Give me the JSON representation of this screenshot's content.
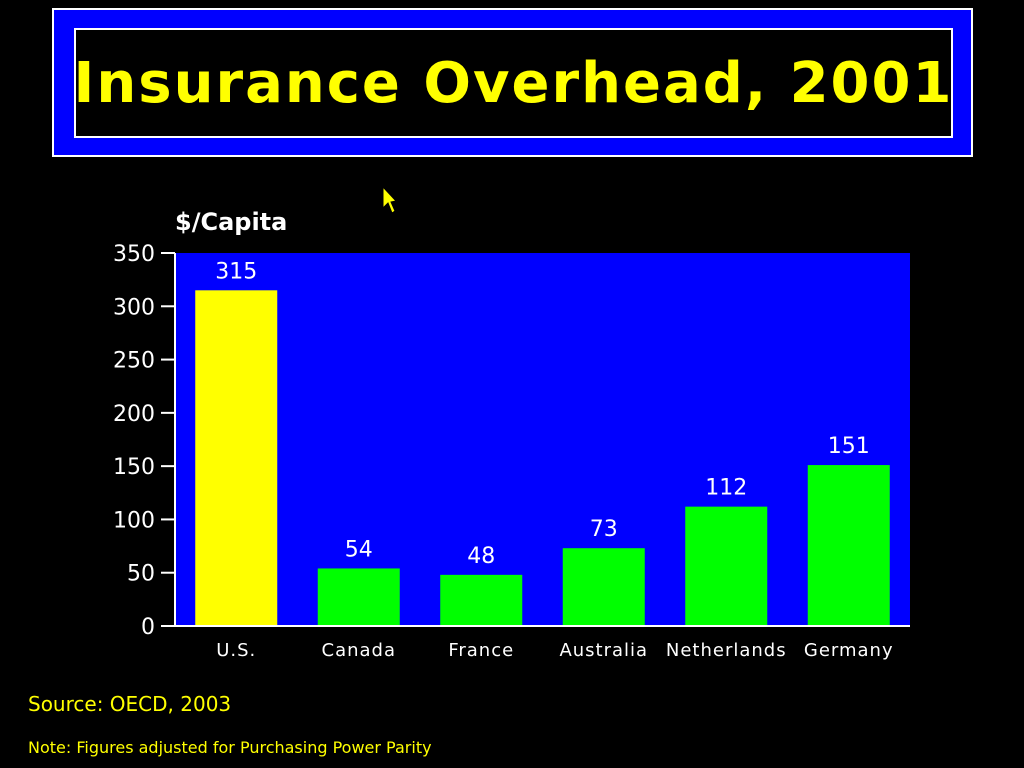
{
  "slide": {
    "title": "Insurance Overhead, 2001",
    "source": "Source: OECD, 2003",
    "note": "Note: Figures adjusted for Purchasing Power Parity"
  },
  "icons": {
    "cursor": "mouse-pointer-icon"
  },
  "colors": {
    "background": "#000000",
    "title_box": "#0000FF",
    "title_text": "#FFFF00",
    "plot_background": "#0000FF",
    "highlight_bar": "#FFFF00",
    "bar": "#00FF00",
    "axis_text": "#FFFFFF"
  },
  "chart_data": {
    "type": "bar",
    "title": "Insurance Overhead, 2001",
    "ylabel": "$/Capita",
    "xlabel": "",
    "categories": [
      "U.S.",
      "Canada",
      "France",
      "Australia",
      "Netherlands",
      "Germany"
    ],
    "values": [
      315,
      54,
      48,
      73,
      112,
      151
    ],
    "data_labels": [
      "315",
      "54",
      "48",
      "73",
      "112",
      "151"
    ],
    "highlight_index": 0,
    "ylim": [
      0,
      350
    ],
    "yticks": [
      0,
      50,
      100,
      150,
      200,
      250,
      300,
      350
    ],
    "grid": false,
    "legend": "none"
  }
}
